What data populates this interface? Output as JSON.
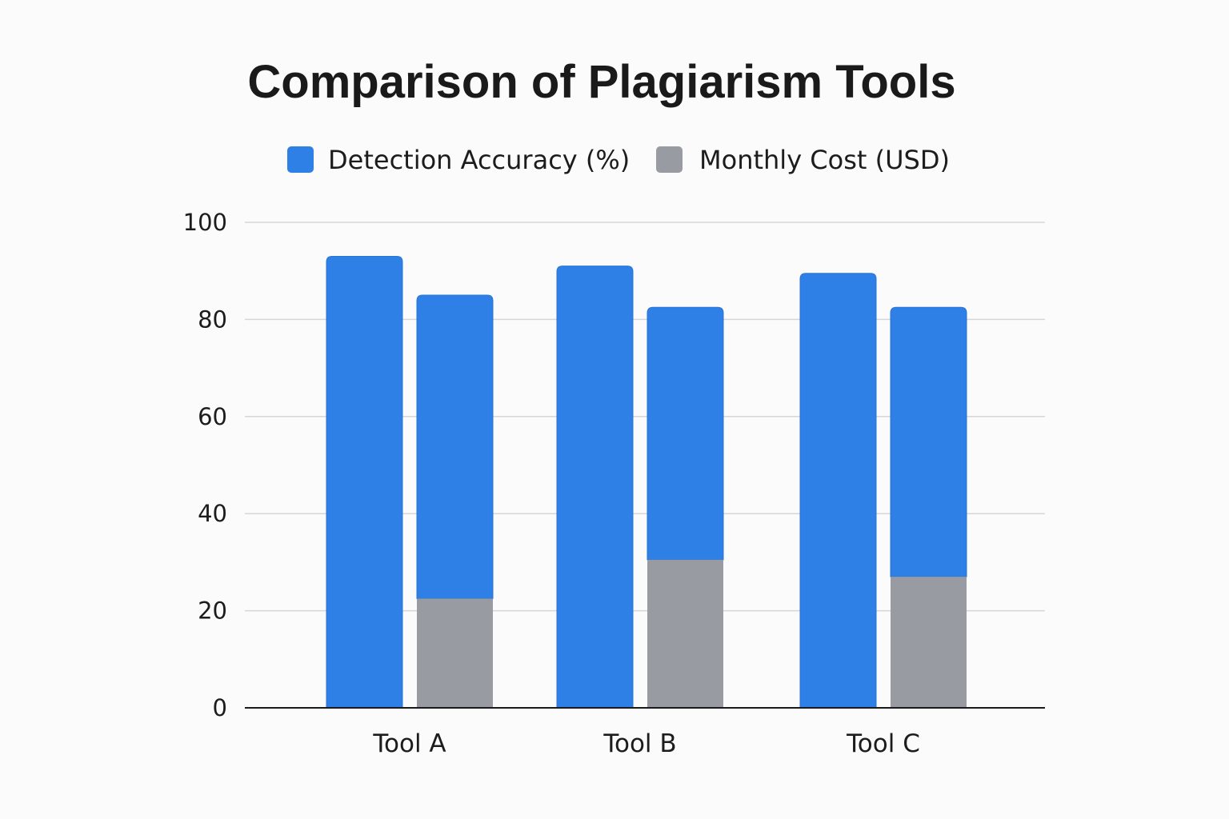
{
  "chart_data": {
    "type": "bar",
    "title": "Comparison of Plagiarism Tools",
    "xlabel": "",
    "ylabel": "",
    "ylim": [
      0,
      100
    ],
    "yticks": [
      0,
      20,
      40,
      60,
      80,
      100
    ],
    "grid": true,
    "legend_position": "top",
    "categories": [
      "Tool A",
      "Tool B",
      "Tool C"
    ],
    "legend": [
      {
        "label": "Detection Accuracy (%)",
        "color": "#2f80e6"
      },
      {
        "label": "Monthly Cost (USD)",
        "color": "#989ba1"
      }
    ],
    "series": [
      {
        "name": "Detection Accuracy (%)",
        "color": "#2f80e6",
        "values": [
          93,
          91,
          89.5
        ]
      },
      {
        "name": "Monthly Cost (USD)",
        "color": "#989ba1",
        "values": [
          22.5,
          30.5,
          27
        ]
      }
    ],
    "second_bar_total_height": [
      85,
      82.5,
      82.5
    ]
  }
}
